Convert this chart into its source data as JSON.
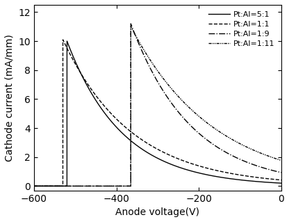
{
  "title": "",
  "xlabel": "Anode voltage(V)",
  "ylabel": "Cathode current (mA/mm)",
  "xlim": [
    -600,
    0
  ],
  "ylim": [
    -0.3,
    12.5
  ],
  "yticks": [
    0,
    2,
    4,
    6,
    8,
    10,
    12
  ],
  "xticks": [
    -600,
    -400,
    -200,
    0
  ],
  "background_color": "#ffffff",
  "curve_params": [
    {
      "label": "Pt:Al=5:1",
      "linestyle": "solid",
      "color": "black",
      "v_break": -520,
      "peak": 10.0,
      "decay": 0.0075,
      "lw": 1.0
    },
    {
      "label": "Pt:Al=1:1",
      "linestyle": "dashed",
      "color": "black",
      "v_break": -530,
      "peak": 10.1,
      "decay": 0.006,
      "lw": 1.0
    },
    {
      "label": "Pt:Al=1:9",
      "linestyle": "dashdot",
      "color": "black",
      "v_break": -365,
      "peak": 11.2,
      "decay": 0.0068,
      "lw": 1.0
    },
    {
      "label": "Pt:Al=1:11",
      "linestyle": "dashdotdotted",
      "color": "black",
      "v_break": -365,
      "peak": 11.0,
      "decay": 0.005,
      "lw": 1.0
    }
  ]
}
